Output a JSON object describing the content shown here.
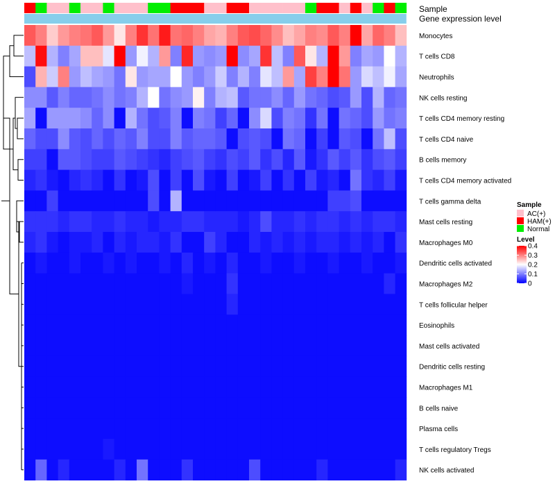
{
  "chart_data": {
    "type": "heatmap",
    "title": "",
    "annotation_labels": {
      "sample": "Sample",
      "gene": "Gene expression level"
    },
    "samples": [
      "HAM(+)",
      "Normal",
      "AC(+)",
      "AC(+)",
      "Normal",
      "AC(+)",
      "AC(+)",
      "Normal",
      "AC(+)",
      "AC(+)",
      "AC(+)",
      "Normal",
      "Normal",
      "HAM(+)",
      "HAM(+)",
      "HAM(+)",
      "AC(+)",
      "AC(+)",
      "HAM(+)",
      "HAM(+)",
      "AC(+)",
      "AC(+)",
      "AC(+)",
      "AC(+)",
      "AC(+)",
      "Normal",
      "HAM(+)",
      "HAM(+)",
      "AC(+)",
      "HAM(+)",
      "AC(+)",
      "Normal",
      "HAM(+)",
      "Normal"
    ],
    "rows": [
      {
        "name": "Monocytes",
        "values": [
          0.33,
          0.3,
          0.24,
          0.28,
          0.3,
          0.31,
          0.33,
          0.28,
          0.22,
          0.3,
          0.36,
          0.31,
          0.38,
          0.31,
          0.32,
          0.3,
          0.27,
          0.26,
          0.3,
          0.33,
          0.34,
          0.32,
          0.29,
          0.25,
          0.27,
          0.3,
          0.29,
          0.33,
          0.3,
          0.4,
          0.27,
          0.32,
          0.3,
          0.25
        ]
      },
      {
        "name": "T cells CD8",
        "values": [
          0.15,
          0.39,
          0.14,
          0.1,
          0.13,
          0.25,
          0.25,
          0.18,
          0.4,
          0.12,
          0.19,
          0.14,
          0.28,
          0.1,
          0.37,
          0.12,
          0.11,
          0.12,
          0.4,
          0.11,
          0.13,
          0.36,
          0.15,
          0.1,
          0.33,
          0.22,
          0.14,
          0.4,
          0.28,
          0.1,
          0.13,
          0.12,
          0.2,
          0.14
        ]
      },
      {
        "name": "Neutrophils",
        "values": [
          0.06,
          0.26,
          0.16,
          0.3,
          0.12,
          0.15,
          0.13,
          0.12,
          0.09,
          0.22,
          0.12,
          0.13,
          0.13,
          0.2,
          0.12,
          0.1,
          0.12,
          0.16,
          0.1,
          0.14,
          0.1,
          0.18,
          0.15,
          0.28,
          0.13,
          0.35,
          0.3,
          0.4,
          0.31,
          0.12,
          0.17,
          0.15,
          0.19,
          0.13
        ]
      },
      {
        "name": "NK cells resting",
        "values": [
          0.11,
          0.11,
          0.07,
          0.1,
          0.08,
          0.08,
          0.09,
          0.11,
          0.09,
          0.1,
          0.14,
          0.2,
          0.09,
          0.11,
          0.12,
          0.21,
          0.1,
          0.14,
          0.15,
          0.07,
          0.09,
          0.09,
          0.11,
          0.08,
          0.12,
          0.09,
          0.08,
          0.06,
          0.07,
          0.12,
          0.06,
          0.14,
          0.08,
          0.09
        ]
      },
      {
        "name": "T cells CD4 memory resting",
        "values": [
          0.13,
          0.01,
          0.12,
          0.12,
          0.12,
          0.11,
          0.08,
          0.11,
          0.01,
          0.14,
          0.09,
          0.06,
          0.07,
          0.1,
          0.01,
          0.1,
          0.09,
          0.05,
          0.08,
          0.01,
          0.11,
          0.17,
          0.06,
          0.1,
          0.09,
          0.04,
          0.09,
          0.01,
          0.09,
          0.08,
          0.06,
          0.12,
          0.09,
          0.1
        ]
      },
      {
        "name": "T cells CD4 naive",
        "values": [
          0.08,
          0.06,
          0.06,
          0.11,
          0.07,
          0.06,
          0.08,
          0.06,
          0.08,
          0.07,
          0.1,
          0.06,
          0.06,
          0.1,
          0.07,
          0.08,
          0.08,
          0.07,
          0.01,
          0.06,
          0.07,
          0.06,
          0.01,
          0.09,
          0.08,
          0.01,
          0.05,
          0.01,
          0.07,
          0.06,
          0.01,
          0.09,
          0.15,
          0.06
        ]
      },
      {
        "name": "B cells memory",
        "values": [
          0.05,
          0.05,
          0.01,
          0.07,
          0.07,
          0.06,
          0.05,
          0.05,
          0.07,
          0.06,
          0.05,
          0.04,
          0.03,
          0.05,
          0.06,
          0.07,
          0.05,
          0.04,
          0.06,
          0.05,
          0.07,
          0.04,
          0.06,
          0.03,
          0.07,
          0.02,
          0.04,
          0.07,
          0.05,
          0.07,
          0.04,
          0.06,
          0.07,
          0.05
        ]
      },
      {
        "name": "T cells CD4 memory activated",
        "values": [
          0.03,
          0.04,
          0.02,
          0.01,
          0.03,
          0.04,
          0.03,
          0.01,
          0.04,
          0.01,
          0.02,
          0.06,
          0.01,
          0.05,
          0.01,
          0.06,
          0.02,
          0.01,
          0.05,
          0.01,
          0.02,
          0.05,
          0.01,
          0.04,
          0.01,
          0.05,
          0.02,
          0.03,
          0.01,
          0.09,
          0.04,
          0.03,
          0.05,
          0.02
        ]
      },
      {
        "name": "T cells gamma delta",
        "values": [
          0.01,
          0.01,
          0.05,
          0.01,
          0.01,
          0.01,
          0.01,
          0.01,
          0.01,
          0.01,
          0.01,
          0.06,
          0.01,
          0.14,
          0.01,
          0.01,
          0.01,
          0.01,
          0.01,
          0.01,
          0.01,
          0.01,
          0.01,
          0.01,
          0.01,
          0.01,
          0.01,
          0.05,
          0.05,
          0.06,
          0.01,
          0.01,
          0.01,
          0.01
        ]
      },
      {
        "name": "Mast cells resting",
        "values": [
          0.04,
          0.04,
          0.04,
          0.03,
          0.04,
          0.04,
          0.03,
          0.03,
          0.04,
          0.03,
          0.03,
          0.02,
          0.03,
          0.03,
          0.04,
          0.04,
          0.03,
          0.03,
          0.03,
          0.02,
          0.03,
          0.06,
          0.03,
          0.03,
          0.04,
          0.03,
          0.04,
          0.04,
          0.03,
          0.04,
          0.03,
          0.04,
          0.04,
          0.03
        ]
      },
      {
        "name": "Macrophages M0",
        "values": [
          0.03,
          0.04,
          0.02,
          0.01,
          0.02,
          0.02,
          0.03,
          0.01,
          0.03,
          0.02,
          0.03,
          0.03,
          0.02,
          0.04,
          0.01,
          0.01,
          0.05,
          0.03,
          0.01,
          0.01,
          0.03,
          0.02,
          0.03,
          0.02,
          0.03,
          0.02,
          0.03,
          0.03,
          0.02,
          0.03,
          0.02,
          0.03,
          0.01,
          0.04
        ]
      },
      {
        "name": "Dendritic cells activated",
        "values": [
          0.01,
          0.02,
          0.01,
          0.01,
          0.02,
          0.01,
          0.01,
          0.02,
          0.01,
          0.02,
          0.01,
          0.01,
          0.02,
          0.01,
          0.03,
          0.01,
          0.02,
          0.01,
          0.03,
          0.01,
          0.01,
          0.02,
          0.01,
          0.01,
          0.02,
          0.01,
          0.01,
          0.02,
          0.01,
          0.01,
          0.02,
          0.01,
          0.01,
          0.02
        ]
      },
      {
        "name": "Macrophages M2",
        "values": [
          0.01,
          0.01,
          0.01,
          0.01,
          0.01,
          0.01,
          0.01,
          0.01,
          0.01,
          0.01,
          0.01,
          0.01,
          0.01,
          0.01,
          0.02,
          0.01,
          0.01,
          0.01,
          0.04,
          0.01,
          0.01,
          0.01,
          0.01,
          0.01,
          0.01,
          0.01,
          0.01,
          0.01,
          0.01,
          0.01,
          0.01,
          0.01,
          0.03,
          0.01
        ]
      },
      {
        "name": "T cells follicular helper",
        "values": [
          0.01,
          0.01,
          0.01,
          0.01,
          0.01,
          0.01,
          0.01,
          0.01,
          0.01,
          0.01,
          0.01,
          0.01,
          0.01,
          0.01,
          0.01,
          0.01,
          0.01,
          0.01,
          0.03,
          0.01,
          0.01,
          0.01,
          0.01,
          0.01,
          0.01,
          0.01,
          0.01,
          0.01,
          0.01,
          0.01,
          0.01,
          0.01,
          0.01,
          0.01
        ]
      },
      {
        "name": "Eosinophils",
        "values": [
          0.01,
          0.01,
          0.01,
          0.01,
          0.01,
          0.01,
          0.01,
          0.01,
          0.01,
          0.01,
          0.01,
          0.01,
          0.01,
          0.01,
          0.01,
          0.01,
          0.01,
          0.01,
          0.01,
          0.01,
          0.01,
          0.01,
          0.01,
          0.01,
          0.01,
          0.01,
          0.01,
          0.01,
          0.01,
          0.01,
          0.01,
          0.01,
          0.01,
          0.01
        ]
      },
      {
        "name": "Mast cells activated",
        "values": [
          0.01,
          0.01,
          0.01,
          0.01,
          0.01,
          0.01,
          0.01,
          0.01,
          0.01,
          0.01,
          0.01,
          0.01,
          0.01,
          0.01,
          0.01,
          0.01,
          0.01,
          0.01,
          0.01,
          0.01,
          0.01,
          0.01,
          0.01,
          0.01,
          0.01,
          0.01,
          0.01,
          0.01,
          0.01,
          0.01,
          0.01,
          0.01,
          0.01,
          0.01
        ]
      },
      {
        "name": "Dendritic cells resting",
        "values": [
          0.01,
          0.01,
          0.01,
          0.01,
          0.01,
          0.01,
          0.01,
          0.01,
          0.01,
          0.01,
          0.01,
          0.01,
          0.01,
          0.01,
          0.01,
          0.01,
          0.01,
          0.01,
          0.01,
          0.01,
          0.01,
          0.01,
          0.01,
          0.01,
          0.01,
          0.01,
          0.01,
          0.01,
          0.01,
          0.01,
          0.01,
          0.01,
          0.01,
          0.01
        ]
      },
      {
        "name": "Macrophages M1",
        "values": [
          0.01,
          0.01,
          0.01,
          0.01,
          0.01,
          0.01,
          0.01,
          0.01,
          0.01,
          0.01,
          0.01,
          0.01,
          0.01,
          0.01,
          0.01,
          0.01,
          0.01,
          0.01,
          0.01,
          0.01,
          0.01,
          0.01,
          0.01,
          0.01,
          0.01,
          0.01,
          0.01,
          0.01,
          0.01,
          0.01,
          0.01,
          0.01,
          0.01,
          0.01
        ]
      },
      {
        "name": "B cells naive",
        "values": [
          0.01,
          0.01,
          0.01,
          0.01,
          0.01,
          0.01,
          0.01,
          0.01,
          0.01,
          0.01,
          0.01,
          0.01,
          0.01,
          0.01,
          0.01,
          0.01,
          0.01,
          0.01,
          0.01,
          0.01,
          0.01,
          0.01,
          0.01,
          0.01,
          0.01,
          0.01,
          0.01,
          0.01,
          0.01,
          0.01,
          0.01,
          0.01,
          0.01,
          0.01
        ]
      },
      {
        "name": "Plasma cells",
        "values": [
          0.01,
          0.01,
          0.01,
          0.01,
          0.01,
          0.01,
          0.01,
          0.01,
          0.01,
          0.01,
          0.01,
          0.01,
          0.01,
          0.01,
          0.01,
          0.01,
          0.01,
          0.01,
          0.01,
          0.01,
          0.01,
          0.01,
          0.01,
          0.01,
          0.01,
          0.01,
          0.01,
          0.01,
          0.01,
          0.01,
          0.01,
          0.01,
          0.01,
          0.01
        ]
      },
      {
        "name": "T cells regulatory  Tregs",
        "values": [
          0.01,
          0.01,
          0.01,
          0.01,
          0.01,
          0.01,
          0.01,
          0.02,
          0.01,
          0.01,
          0.01,
          0.01,
          0.01,
          0.01,
          0.01,
          0.01,
          0.01,
          0.01,
          0.01,
          0.01,
          0.01,
          0.01,
          0.01,
          0.01,
          0.01,
          0.01,
          0.01,
          0.01,
          0.01,
          0.01,
          0.01,
          0.01,
          0.01,
          0.01
        ]
      },
      {
        "name": "NK cells activated",
        "values": [
          0.01,
          0.08,
          0.01,
          0.03,
          0.01,
          0.01,
          0.01,
          0.01,
          0.03,
          0.01,
          0.09,
          0.01,
          0.01,
          0.01,
          0.04,
          0.01,
          0.01,
          0.01,
          0.01,
          0.01,
          0.06,
          0.01,
          0.01,
          0.01,
          0.01,
          0.01,
          0.03,
          0.01,
          0.01,
          0.01,
          0.01,
          0.01,
          0.01,
          0.03
        ]
      }
    ],
    "legend_sample": {
      "title": "Sample",
      "entries": [
        {
          "label": "AC(+)",
          "color": "#ffc0cb"
        },
        {
          "label": "HAM(+)",
          "color": "#ff0000"
        },
        {
          "label": "Normal",
          "color": "#00ee00"
        }
      ]
    },
    "legend_level": {
      "title": "Level",
      "ticks": [
        "0.4",
        "0.3",
        "0.2",
        "0.1",
        "0"
      ],
      "tick_values": [
        0.4,
        0.3,
        0.2,
        0.1,
        0
      ],
      "range": [
        0,
        0.4
      ]
    },
    "colors": {
      "low": "#0000ff",
      "mid": "#ffffff",
      "high": "#ff0000",
      "gene_bar": "#87ceeb"
    }
  }
}
